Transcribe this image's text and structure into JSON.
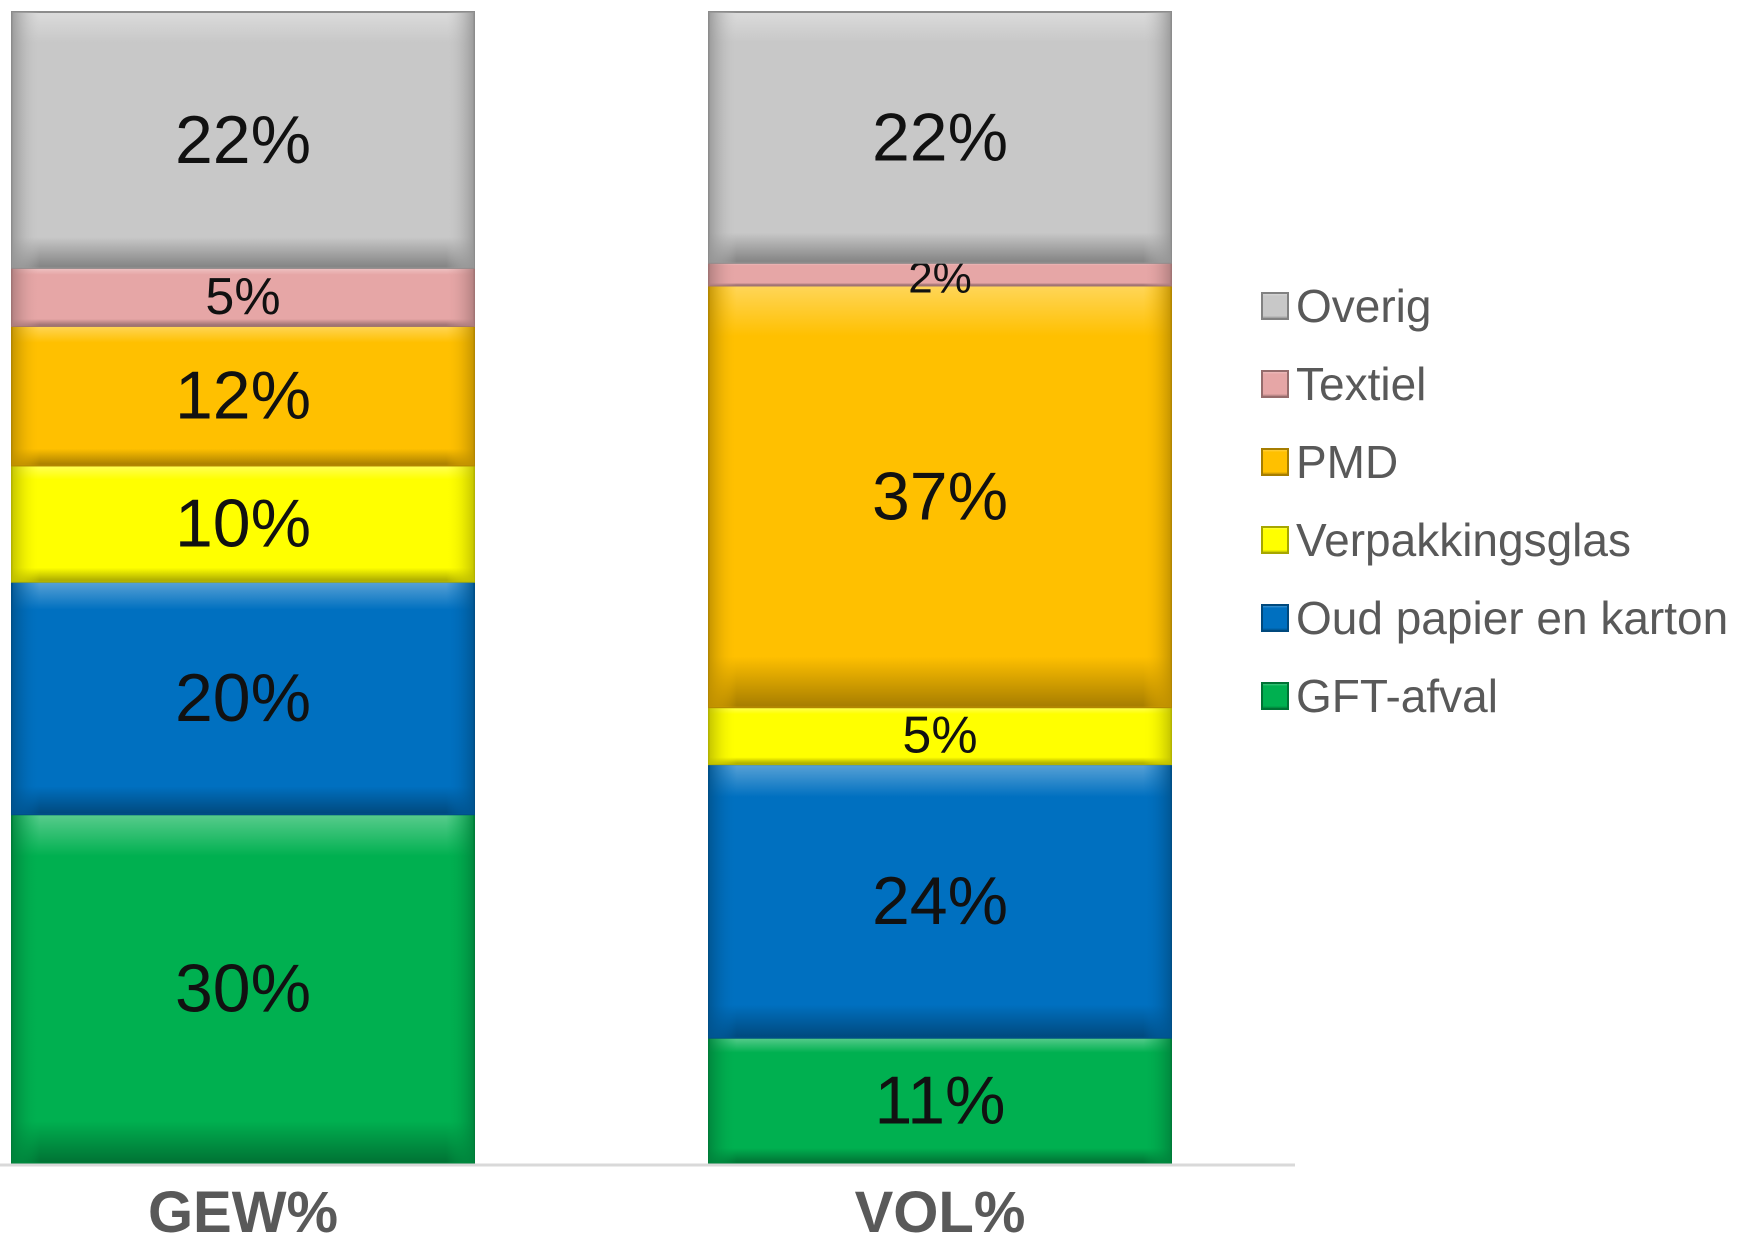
{
  "chart_data": {
    "type": "bar",
    "stacked": true,
    "normalized": true,
    "categories": [
      "GEW%",
      "VOL%"
    ],
    "series": [
      {
        "name": "GFT-afval",
        "values": [
          30,
          11
        ],
        "labels": [
          "30%",
          "11%"
        ],
        "color": "#00b050"
      },
      {
        "name": "Oud papier en karton",
        "values": [
          20,
          24
        ],
        "labels": [
          "20%",
          "24%"
        ],
        "color": "#0070c0"
      },
      {
        "name": "Verpakkingsglas",
        "values": [
          10,
          5
        ],
        "labels": [
          "10%",
          "5%"
        ],
        "color": "#ffff00"
      },
      {
        "name": "PMD",
        "values": [
          12,
          37
        ],
        "labels": [
          "12%",
          "37%"
        ],
        "color": "#ffc000"
      },
      {
        "name": "Textiel",
        "values": [
          5,
          2
        ],
        "labels": [
          "5%",
          "2%"
        ],
        "color": "#e6a6a6"
      },
      {
        "name": "Overig",
        "values": [
          22,
          22
        ],
        "labels": [
          "22%",
          "22%"
        ],
        "color": "#c8c8c8"
      }
    ],
    "legend": {
      "position": "right",
      "entries": [
        "Overig",
        "Textiel",
        "PMD",
        "Verpakkingsglas",
        "Oud papier en karton",
        "GFT-afval"
      ]
    },
    "xlabel": "",
    "ylabel": "",
    "grid": false,
    "y_axis_visible": false
  }
}
